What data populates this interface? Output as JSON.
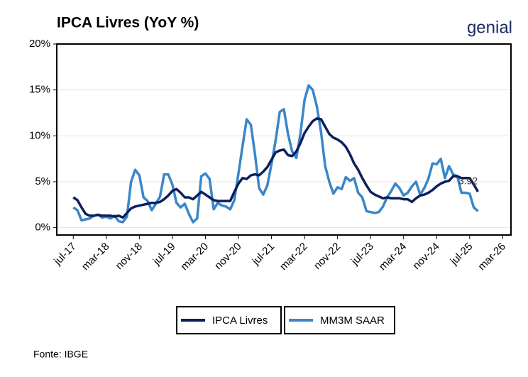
{
  "chart_data": {
    "type": "line",
    "title": "IPCA Livres (YoY %)",
    "logo": "genial",
    "source": "Fonte: IBGE",
    "x": [
      "2017-07",
      "2017-08",
      "2017-09",
      "2017-10",
      "2017-11",
      "2017-12",
      "2018-01",
      "2018-02",
      "2018-03",
      "2018-04",
      "2018-05",
      "2018-06",
      "2018-07",
      "2018-08",
      "2018-09",
      "2018-10",
      "2018-11",
      "2018-12",
      "2019-01",
      "2019-02",
      "2019-03",
      "2019-04",
      "2019-05",
      "2019-06",
      "2019-07",
      "2019-08",
      "2019-09",
      "2019-10",
      "2019-11",
      "2019-12",
      "2020-01",
      "2020-02",
      "2020-03",
      "2020-04",
      "2020-05",
      "2020-06",
      "2020-07",
      "2020-08",
      "2020-09",
      "2020-10",
      "2020-11",
      "2020-12",
      "2021-01",
      "2021-02",
      "2021-03",
      "2021-04",
      "2021-05",
      "2021-06",
      "2021-07",
      "2021-08",
      "2021-09",
      "2021-10",
      "2021-11",
      "2021-12",
      "2022-01",
      "2022-02",
      "2022-03",
      "2022-04",
      "2022-05",
      "2022-06",
      "2022-07",
      "2022-08",
      "2022-09",
      "2022-10",
      "2022-11",
      "2022-12",
      "2023-01",
      "2023-02",
      "2023-03",
      "2023-04",
      "2023-05",
      "2023-06",
      "2023-07",
      "2023-08",
      "2023-09",
      "2023-10",
      "2023-11",
      "2023-12",
      "2024-01",
      "2024-02",
      "2024-03",
      "2024-04",
      "2024-05",
      "2024-06",
      "2024-07",
      "2024-08",
      "2024-09",
      "2024-10",
      "2024-11",
      "2024-12",
      "2025-01",
      "2025-02",
      "2025-03",
      "2025-04",
      "2025-05",
      "2025-06",
      "2025-07",
      "2025-08",
      "2025-09"
    ],
    "series": [
      {
        "name": "IPCA Livres",
        "color": "#0b1f5c",
        "data_labels": "last",
        "values": [
          3.3,
          3.0,
          2.2,
          1.5,
          1.3,
          1.3,
          1.4,
          1.3,
          1.3,
          1.3,
          1.2,
          1.3,
          1.1,
          1.6,
          2.1,
          2.3,
          2.4,
          2.5,
          2.6,
          2.7,
          2.7,
          2.8,
          3.1,
          3.5,
          4.0,
          4.2,
          3.8,
          3.3,
          3.3,
          3.1,
          3.5,
          3.9,
          3.6,
          3.3,
          3.0,
          2.9,
          2.9,
          2.9,
          2.9,
          3.9,
          4.8,
          5.4,
          5.3,
          5.7,
          5.8,
          5.7,
          6.1,
          6.6,
          7.4,
          8.2,
          8.4,
          8.5,
          7.9,
          7.8,
          8.3,
          9.2,
          10.3,
          11.0,
          11.6,
          11.9,
          11.8,
          11.0,
          10.2,
          9.8,
          9.6,
          9.3,
          8.8,
          8.0,
          7.0,
          6.3,
          5.4,
          4.6,
          3.9,
          3.6,
          3.4,
          3.2,
          3.3,
          3.2,
          3.2,
          3.2,
          3.1,
          3.1,
          2.8,
          3.2,
          3.5,
          3.6,
          3.8,
          4.1,
          4.5,
          4.8,
          5.0,
          5.1,
          5.6,
          5.6,
          5.4,
          5.4,
          5.4,
          4.7,
          3.92
        ]
      },
      {
        "name": "MM3M SAAR",
        "color": "#3a86c8",
        "values": [
          2.2,
          1.9,
          0.8,
          0.9,
          1.0,
          1.3,
          1.4,
          1.1,
          1.2,
          1.0,
          1.3,
          0.7,
          0.6,
          1.2,
          5.0,
          6.3,
          5.7,
          3.3,
          2.9,
          1.9,
          2.6,
          3.4,
          5.8,
          5.8,
          4.7,
          2.7,
          2.2,
          2.6,
          1.5,
          0.6,
          1.0,
          5.6,
          5.9,
          5.3,
          2.0,
          2.7,
          2.4,
          2.3,
          2.0,
          3.0,
          5.9,
          8.9,
          11.8,
          11.2,
          8.0,
          4.3,
          3.6,
          4.6,
          6.9,
          9.5,
          12.6,
          12.9,
          10.2,
          8.3,
          7.6,
          10.2,
          13.9,
          15.5,
          15.0,
          13.2,
          10.4,
          6.7,
          5.0,
          3.7,
          4.4,
          4.2,
          5.5,
          5.1,
          5.4,
          3.8,
          3.3,
          1.8,
          1.7,
          1.6,
          1.7,
          2.3,
          3.3,
          4.0,
          4.8,
          4.3,
          3.5,
          3.8,
          4.5,
          5.0,
          3.6,
          4.3,
          5.3,
          7.0,
          6.9,
          7.5,
          5.4,
          6.7,
          5.8,
          5.6,
          3.8,
          3.8,
          3.7,
          2.2,
          1.8
        ]
      }
    ],
    "xlim": [
      "2017-03",
      "2026-05"
    ],
    "xticks": [
      {
        "value": "2017-07",
        "label": "jul-17"
      },
      {
        "value": "2018-03",
        "label": "mar-18"
      },
      {
        "value": "2018-11",
        "label": "nov-18"
      },
      {
        "value": "2019-07",
        "label": "jul-19"
      },
      {
        "value": "2020-03",
        "label": "mar-20"
      },
      {
        "value": "2020-11",
        "label": "nov-20"
      },
      {
        "value": "2021-07",
        "label": "jul-21"
      },
      {
        "value": "2022-03",
        "label": "mar-22"
      },
      {
        "value": "2022-11",
        "label": "nov-22"
      },
      {
        "value": "2023-07",
        "label": "jul-23"
      },
      {
        "value": "2024-03",
        "label": "mar-24"
      },
      {
        "value": "2024-11",
        "label": "nov-24"
      },
      {
        "value": "2025-07",
        "label": "jul-25"
      },
      {
        "value": "2026-03",
        "label": "mar-26"
      }
    ],
    "ylim": [
      -0.8,
      20
    ],
    "yticks": [
      {
        "value": 0,
        "label": "0%"
      },
      {
        "value": 5,
        "label": "5%"
      },
      {
        "value": 10,
        "label": "10%"
      },
      {
        "value": 15,
        "label": "15%"
      },
      {
        "value": 20,
        "label": "20%"
      }
    ],
    "grid": true,
    "legend": "bottom"
  }
}
